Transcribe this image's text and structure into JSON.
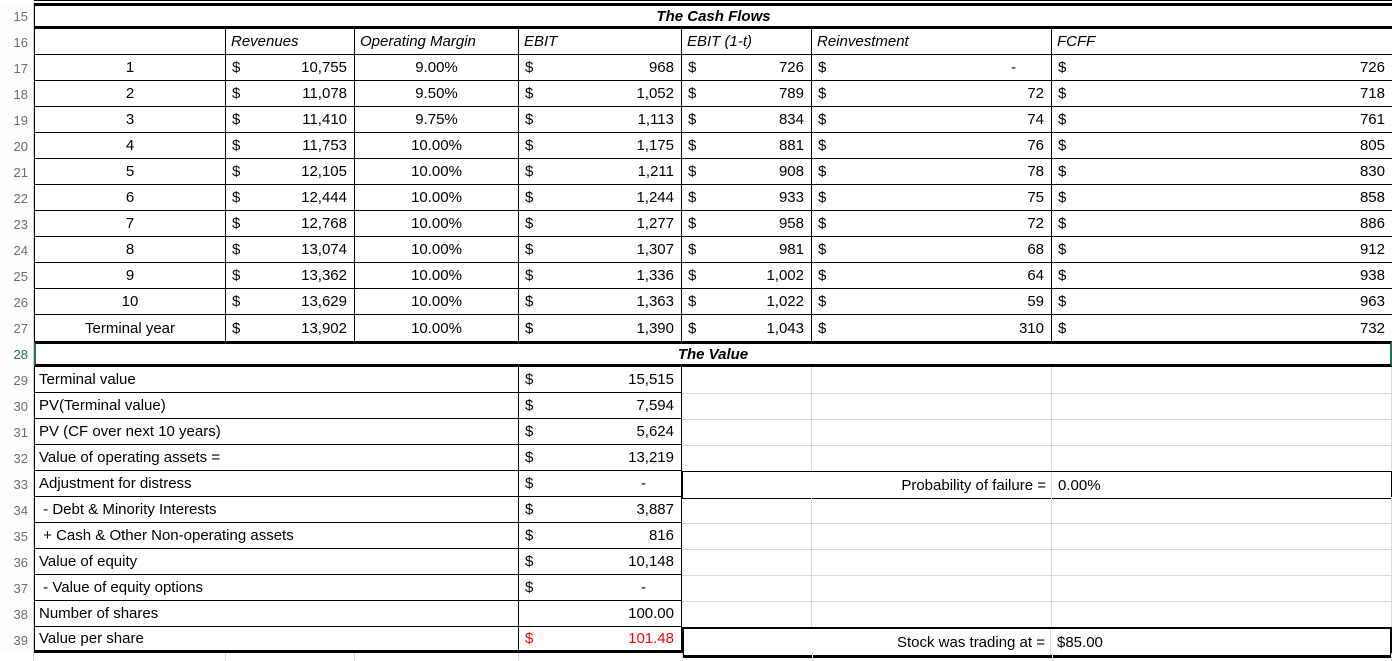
{
  "cash_flows": {
    "row_number": "15",
    "title": "The Cash Flows",
    "header_row_number": "16",
    "columns": [
      "",
      "Revenues",
      "Operating Margin",
      "EBIT",
      "EBIT (1-t)",
      "Reinvestment",
      "FCFF"
    ],
    "currency_symbol": "$",
    "rows": [
      {
        "row": "17",
        "year": "1",
        "revenues": "10,755",
        "margin": "9.00%",
        "ebit": "968",
        "ebit_1t": "726",
        "reinvestment": "-",
        "fcff": "726"
      },
      {
        "row": "18",
        "year": "2",
        "revenues": "11,078",
        "margin": "9.50%",
        "ebit": "1,052",
        "ebit_1t": "789",
        "reinvestment": "72",
        "fcff": "718"
      },
      {
        "row": "19",
        "year": "3",
        "revenues": "11,410",
        "margin": "9.75%",
        "ebit": "1,113",
        "ebit_1t": "834",
        "reinvestment": "74",
        "fcff": "761"
      },
      {
        "row": "20",
        "year": "4",
        "revenues": "11,753",
        "margin": "10.00%",
        "ebit": "1,175",
        "ebit_1t": "881",
        "reinvestment": "76",
        "fcff": "805"
      },
      {
        "row": "21",
        "year": "5",
        "revenues": "12,105",
        "margin": "10.00%",
        "ebit": "1,211",
        "ebit_1t": "908",
        "reinvestment": "78",
        "fcff": "830"
      },
      {
        "row": "22",
        "year": "6",
        "revenues": "12,444",
        "margin": "10.00%",
        "ebit": "1,244",
        "ebit_1t": "933",
        "reinvestment": "75",
        "fcff": "858"
      },
      {
        "row": "23",
        "year": "7",
        "revenues": "12,768",
        "margin": "10.00%",
        "ebit": "1,277",
        "ebit_1t": "958",
        "reinvestment": "72",
        "fcff": "886"
      },
      {
        "row": "24",
        "year": "8",
        "revenues": "13,074",
        "margin": "10.00%",
        "ebit": "1,307",
        "ebit_1t": "981",
        "reinvestment": "68",
        "fcff": "912"
      },
      {
        "row": "25",
        "year": "9",
        "revenues": "13,362",
        "margin": "10.00%",
        "ebit": "1,336",
        "ebit_1t": "1,002",
        "reinvestment": "64",
        "fcff": "938"
      },
      {
        "row": "26",
        "year": "10",
        "revenues": "13,629",
        "margin": "10.00%",
        "ebit": "1,363",
        "ebit_1t": "1,022",
        "reinvestment": "59",
        "fcff": "963"
      },
      {
        "row": "27",
        "year": "Terminal year",
        "revenues": "13,902",
        "margin": "10.00%",
        "ebit": "1,390",
        "ebit_1t": "1,043",
        "reinvestment": "310",
        "fcff": "732"
      }
    ]
  },
  "value_section": {
    "row_number": "28",
    "title": "The Value",
    "rows": [
      {
        "row": "29",
        "label": "Terminal value",
        "currency": "$",
        "value": "15,515"
      },
      {
        "row": "30",
        "label": "PV(Terminal value)",
        "currency": "$",
        "value": "7,594"
      },
      {
        "row": "31",
        "label": "PV (CF over next 10 years)",
        "currency": "$",
        "value": "5,624"
      },
      {
        "row": "32",
        "label": "Value of operating assets =",
        "currency": "$",
        "value": "13,219"
      },
      {
        "row": "33",
        "label": "Adjustment for distress",
        "currency": "$",
        "value": "-",
        "right_label": "Probability of failure =",
        "right_value": "0.00%",
        "right_boxed": true
      },
      {
        "row": "34",
        "label": " - Debt & Minority Interests",
        "currency": "$",
        "value": "3,887"
      },
      {
        "row": "35",
        "label": " + Cash & Other Non-operating assets",
        "currency": "$",
        "value": "816"
      },
      {
        "row": "36",
        "label": "Value of equity",
        "currency": "$",
        "value": "10,148"
      },
      {
        "row": "37",
        "label": " - Value of equity options",
        "currency": "$",
        "value": "-"
      },
      {
        "row": "38",
        "label": "Number of shares",
        "currency": "",
        "value": "100.00"
      },
      {
        "row": "39",
        "label": "Value per share",
        "currency": "$",
        "value": "101.48",
        "value_color": "red",
        "right_label": "Stock was trading at =",
        "right_value": "$85.00",
        "right_boxed": true,
        "right_thick": true
      }
    ]
  },
  "colors": {
    "selection_green": "#217346",
    "alert_red": "#ff0000",
    "grid_gray": "#d9d9d9",
    "border_black": "#000000",
    "gutter_text_gray": "#6d6d6d"
  }
}
